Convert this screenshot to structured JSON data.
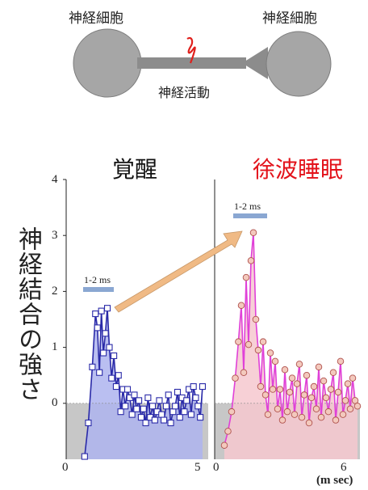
{
  "diagram": {
    "neuron_left_label": "神経細胞",
    "neuron_right_label": "神経細胞",
    "activity_label": "神経活動",
    "colors": {
      "neuron": "#a6a6a6",
      "axon": "#8c8c8c",
      "spike": "#e0201c"
    }
  },
  "chart_data": [
    {
      "type": "line",
      "title": "覚醒",
      "ylabel": "神経結合の強さ",
      "yticks": [
        "4",
        "3",
        "2",
        "1",
        "0"
      ],
      "xticks": [
        "0",
        "5"
      ],
      "xlim": [
        0,
        5
      ],
      "ylim": [
        -1,
        4
      ],
      "scale_bar_label": "1-2 ms",
      "color": "#2a2aa8",
      "fill": "#aeb4ee",
      "x": [
        0.65,
        0.78,
        0.92,
        1.03,
        1.1,
        1.17,
        1.24,
        1.31,
        1.38,
        1.45,
        1.52,
        1.6,
        1.68,
        1.76,
        1.84,
        1.92,
        2.0,
        2.08,
        2.16,
        2.24,
        2.32,
        2.4,
        2.48,
        2.56,
        2.64,
        2.72,
        2.8,
        2.88,
        2.96,
        3.04,
        3.12,
        3.2,
        3.28,
        3.36,
        3.44,
        3.52,
        3.6,
        3.68,
        3.76,
        3.84,
        3.92,
        4.0,
        4.08,
        4.16,
        4.24,
        4.32,
        4.4,
        4.48,
        4.56,
        4.64,
        4.72,
        4.8
      ],
      "y": [
        -0.95,
        -0.35,
        0.65,
        1.6,
        1.35,
        0.55,
        1.65,
        0.9,
        1.25,
        1.7,
        1.0,
        0.45,
        0.85,
        0.3,
        0.5,
        -0.15,
        0.25,
        -0.05,
        0.25,
        0.1,
        -0.2,
        0.15,
        -0.1,
        0.05,
        -0.25,
        -0.1,
        -0.35,
        0.1,
        -0.25,
        -0.05,
        -0.3,
        -0.15,
        0.05,
        -0.2,
        -0.3,
        -0.05,
        0.15,
        -0.35,
        -0.15,
        -0.05,
        0.2,
        -0.25,
        0.1,
        -0.15,
        0.05,
        0.25,
        -0.2,
        0.3,
        0.1,
        -0.05,
        -0.25,
        0.3
      ]
    },
    {
      "type": "line",
      "title": "徐波睡眠",
      "xticks": [
        "0",
        "6"
      ],
      "xunit": "(m sec)",
      "xlim": [
        0,
        6
      ],
      "ylim": [
        -1,
        4
      ],
      "scale_bar_label": "1-2 ms",
      "color": "#e040d8",
      "fill": "#f6c8cf",
      "x": [
        0.4,
        0.55,
        0.7,
        0.85,
        0.98,
        1.1,
        1.2,
        1.3,
        1.4,
        1.5,
        1.6,
        1.7,
        1.8,
        1.9,
        2.0,
        2.1,
        2.2,
        2.3,
        2.4,
        2.5,
        2.6,
        2.7,
        2.8,
        2.9,
        3.0,
        3.1,
        3.2,
        3.3,
        3.4,
        3.5,
        3.6,
        3.7,
        3.8,
        3.9,
        4.0,
        4.1,
        4.2,
        4.3,
        4.4,
        4.5,
        4.6,
        4.7,
        4.8,
        4.9,
        5.0,
        5.1,
        5.2,
        5.3,
        5.4,
        5.5,
        5.6,
        5.7,
        5.8,
        5.9
      ],
      "y": [
        -0.75,
        -0.5,
        -0.15,
        0.45,
        1.1,
        1.75,
        0.55,
        2.25,
        1.05,
        2.55,
        3.05,
        1.5,
        0.95,
        0.3,
        1.1,
        0.15,
        -0.2,
        0.9,
        0.25,
        0.75,
        -0.1,
        0.25,
        -0.3,
        0.6,
        -0.15,
        0.2,
        0.45,
        -0.2,
        0.35,
        0.7,
        -0.25,
        0.15,
        0.5,
        -0.35,
        0.1,
        0.3,
        -0.1,
        0.65,
        -0.25,
        0.4,
        0.1,
        -0.15,
        0.25,
        0.55,
        -0.3,
        0.2,
        0.75,
        -0.2,
        0.05,
        0.35,
        -0.1,
        0.45,
        0.05,
        -0.05
      ]
    }
  ]
}
